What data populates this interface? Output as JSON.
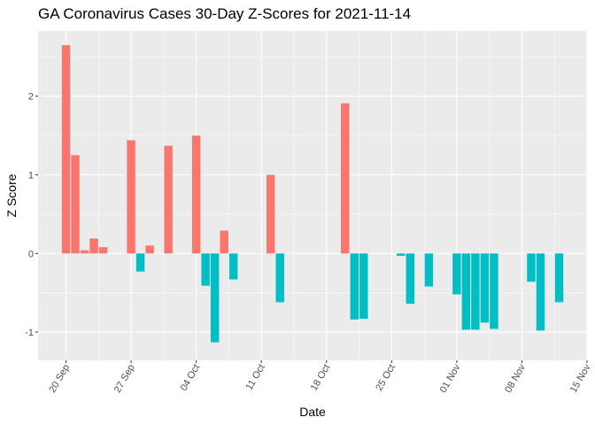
{
  "chart_data": {
    "type": "bar",
    "title": "GA Coronavirus Cases 30-Day Z-Scores for 2021-11-14",
    "xlabel": "Date",
    "ylabel": "Z Score",
    "x_tick_labels": [
      "20 Sep",
      "27 Sep",
      "04 Oct",
      "11 Oct",
      "18 Oct",
      "25 Oct",
      "01 Nov",
      "08 Nov",
      "15 Nov"
    ],
    "x_tick_dates": [
      "2021-09-20",
      "2021-09-27",
      "2021-10-04",
      "2021-10-11",
      "2021-10-18",
      "2021-10-25",
      "2021-11-01",
      "2021-11-08",
      "2021-11-15"
    ],
    "y_ticks": [
      -1,
      0,
      1,
      2
    ],
    "y_tick_labels": [
      "-1",
      "0",
      "1",
      "2"
    ],
    "xlim": [
      "2021-09-17",
      "2021-11-15"
    ],
    "ylim": [
      -1.36,
      2.83
    ],
    "grid": true,
    "colors": {
      "positive": "#F8766D",
      "negative": "#00BFC4",
      "panel": "#EBEBEB",
      "grid": "#FFFFFF"
    },
    "x": [
      "2021-09-20",
      "2021-09-21",
      "2021-09-22",
      "2021-09-23",
      "2021-09-24",
      "2021-09-27",
      "2021-09-28",
      "2021-09-29",
      "2021-10-01",
      "2021-10-04",
      "2021-10-05",
      "2021-10-06",
      "2021-10-07",
      "2021-10-08",
      "2021-10-12",
      "2021-10-13",
      "2021-10-20",
      "2021-10-21",
      "2021-10-22",
      "2021-10-26",
      "2021-10-27",
      "2021-10-29",
      "2021-11-01",
      "2021-11-02",
      "2021-11-03",
      "2021-11-04",
      "2021-11-05",
      "2021-11-09",
      "2021-11-10",
      "2021-11-12"
    ],
    "values": [
      2.65,
      1.25,
      0.04,
      0.19,
      0.08,
      1.44,
      -0.23,
      0.1,
      1.37,
      1.5,
      -0.41,
      -1.13,
      0.29,
      -0.33,
      1.0,
      -0.62,
      1.91,
      -0.84,
      -0.83,
      -0.03,
      -0.64,
      -0.42,
      -0.52,
      -0.97,
      -0.97,
      -0.88,
      -0.96,
      -0.36,
      -0.98,
      -0.62
    ]
  }
}
